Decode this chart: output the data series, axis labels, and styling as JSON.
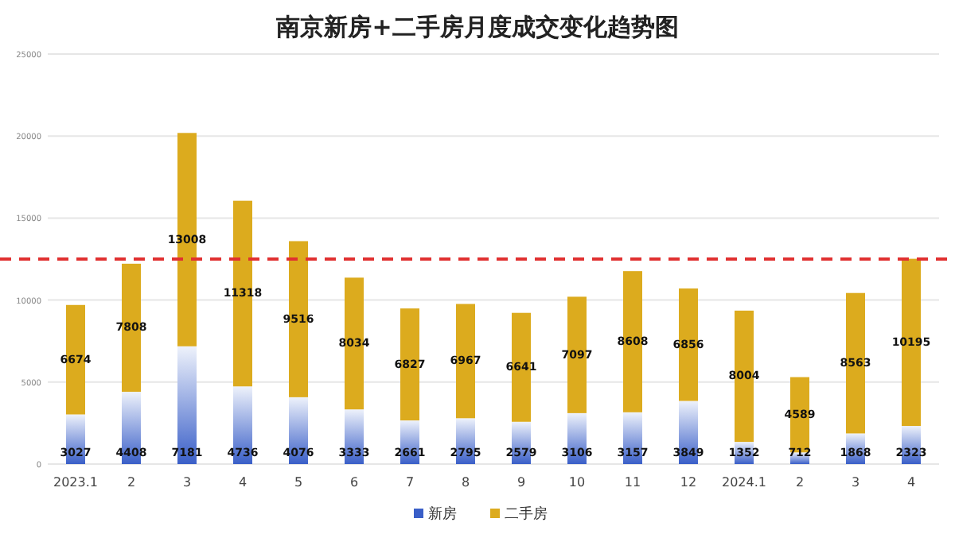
{
  "chart_data": {
    "type": "bar",
    "title": "南京新房+二手房月度成交变化趋势图",
    "stacked": true,
    "categories": [
      "2023.1",
      "2",
      "3",
      "4",
      "5",
      "6",
      "7",
      "8",
      "9",
      "10",
      "11",
      "12",
      "2024.1",
      "2",
      "3",
      "4"
    ],
    "series": [
      {
        "name": "新房",
        "color": "#3a5fc8",
        "values": [
          3027,
          4408,
          7181,
          4736,
          4076,
          3333,
          2661,
          2795,
          2579,
          3106,
          3157,
          3849,
          1352,
          712,
          1868,
          2323
        ]
      },
      {
        "name": "二手房",
        "color": "#dcab1e",
        "values": [
          6674,
          7808,
          13008,
          11318,
          9516,
          8034,
          6827,
          6967,
          6641,
          7097,
          8608,
          6856,
          8004,
          4589,
          8563,
          10195
        ]
      }
    ],
    "ylim": [
      0,
      25000
    ],
    "yticks": [
      0,
      5000,
      10000,
      15000,
      20000,
      25000
    ],
    "grid": "y",
    "data_labels": true,
    "legend": "bottom",
    "ref_lines": [
      {
        "axis": "y",
        "value": 12500,
        "color": "#e03030",
        "line_style": "dashed"
      }
    ]
  }
}
